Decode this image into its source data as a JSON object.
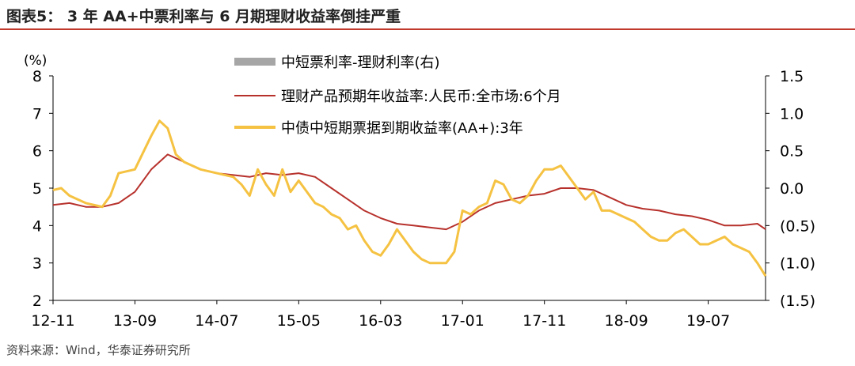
{
  "header": {
    "title": "图表5： 3 年 AA+中票利率与 6 月期理财收益率倒挂严重"
  },
  "footer": {
    "source": "资料来源：Wind，华泰证券研究所"
  },
  "colors": {
    "accent": "#c0392b",
    "spread": "#a6a6a6",
    "wmp": "#b7312c",
    "aa": "#f5c242"
  },
  "chart_data": {
    "type": "line",
    "title": "",
    "left_axis": {
      "unit_label": "(%)",
      "ylim": [
        2,
        8
      ],
      "ticks": [
        "2",
        "3",
        "4",
        "5",
        "6",
        "7",
        "8"
      ]
    },
    "right_axis": {
      "ylim": [
        -1.5,
        1.5
      ],
      "ticks": [
        "(1.5)",
        "(1.0)",
        "(0.5)",
        "0.0",
        "0.5",
        "1.0",
        "1.5"
      ]
    },
    "x_ticks": [
      "12-11",
      "13-09",
      "14-07",
      "15-05",
      "16-03",
      "17-01",
      "17-11",
      "18-09",
      "19-07"
    ],
    "legend_placement": "top-center",
    "series": [
      {
        "name": "中短票利率-理财利率(右)",
        "axis": "right",
        "style": "bar",
        "x": [],
        "values": []
      },
      {
        "name": "理财产品预期年收益率:人民币:全市场:6个月",
        "axis": "left",
        "style": "line",
        "x": [
          "2012-11",
          "2013-01",
          "2013-03",
          "2013-05",
          "2013-07",
          "2013-09",
          "2013-11",
          "2014-01",
          "2014-03",
          "2014-05",
          "2014-07",
          "2014-09",
          "2014-11",
          "2015-01",
          "2015-03",
          "2015-05",
          "2015-07",
          "2015-09",
          "2015-11",
          "2016-01",
          "2016-03",
          "2016-05",
          "2016-07",
          "2016-09",
          "2016-11",
          "2017-01",
          "2017-03",
          "2017-05",
          "2017-07",
          "2017-09",
          "2017-11",
          "2018-01",
          "2018-03",
          "2018-05",
          "2018-07",
          "2018-09",
          "2018-11",
          "2019-01",
          "2019-03",
          "2019-05",
          "2019-07",
          "2019-09",
          "2019-11",
          "2020-01",
          "2020-02"
        ],
        "values": [
          4.55,
          4.6,
          4.5,
          4.5,
          4.6,
          4.9,
          5.5,
          5.9,
          5.7,
          5.5,
          5.4,
          5.35,
          5.3,
          5.4,
          5.35,
          5.4,
          5.3,
          5.0,
          4.7,
          4.4,
          4.2,
          4.05,
          4.0,
          3.95,
          3.9,
          4.1,
          4.4,
          4.6,
          4.7,
          4.8,
          4.85,
          5.0,
          5.0,
          4.95,
          4.75,
          4.55,
          4.45,
          4.4,
          4.3,
          4.25,
          4.15,
          4.0,
          4.0,
          4.05,
          3.9
        ]
      },
      {
        "name": "中债中短期票据到期收益率(AA+):3年",
        "axis": "left",
        "style": "line",
        "x": [
          "2012-11",
          "2012-12",
          "2013-01",
          "2013-03",
          "2013-05",
          "2013-06",
          "2013-07",
          "2013-09",
          "2013-11",
          "2013-12",
          "2014-01",
          "2014-02",
          "2014-03",
          "2014-05",
          "2014-07",
          "2014-09",
          "2014-10",
          "2014-11",
          "2014-12",
          "2015-01",
          "2015-02",
          "2015-03",
          "2015-04",
          "2015-05",
          "2015-06",
          "2015-07",
          "2015-08",
          "2015-09",
          "2015-10",
          "2015-11",
          "2015-12",
          "2016-01",
          "2016-02",
          "2016-03",
          "2016-04",
          "2016-05",
          "2016-06",
          "2016-07",
          "2016-08",
          "2016-09",
          "2016-10",
          "2016-11",
          "2016-12",
          "2017-01",
          "2017-02",
          "2017-03",
          "2017-04",
          "2017-05",
          "2017-06",
          "2017-07",
          "2017-08",
          "2017-09",
          "2017-10",
          "2017-11",
          "2017-12",
          "2018-01",
          "2018-02",
          "2018-03",
          "2018-04",
          "2018-05",
          "2018-06",
          "2018-07",
          "2018-08",
          "2018-09",
          "2018-10",
          "2018-11",
          "2018-12",
          "2019-01",
          "2019-02",
          "2019-03",
          "2019-04",
          "2019-05",
          "2019-06",
          "2019-07",
          "2019-08",
          "2019-09",
          "2019-10",
          "2019-11",
          "2019-12",
          "2020-01",
          "2020-02"
        ],
        "values": [
          4.95,
          5.0,
          4.8,
          4.6,
          4.5,
          4.8,
          5.4,
          5.5,
          6.4,
          6.8,
          6.6,
          5.9,
          5.7,
          5.5,
          5.4,
          5.3,
          5.1,
          4.8,
          5.5,
          5.1,
          4.8,
          5.5,
          4.9,
          5.2,
          4.9,
          4.6,
          4.5,
          4.3,
          4.2,
          3.9,
          4.0,
          3.6,
          3.3,
          3.2,
          3.5,
          3.9,
          3.6,
          3.3,
          3.1,
          3.0,
          3.0,
          3.0,
          3.3,
          4.4,
          4.3,
          4.5,
          4.6,
          5.2,
          5.1,
          4.7,
          4.6,
          4.8,
          5.2,
          5.5,
          5.5,
          5.6,
          5.3,
          5.0,
          4.7,
          4.9,
          4.4,
          4.4,
          4.3,
          4.2,
          4.1,
          3.9,
          3.7,
          3.6,
          3.6,
          3.8,
          3.9,
          3.7,
          3.5,
          3.5,
          3.6,
          3.7,
          3.5,
          3.4,
          3.3,
          3.0,
          2.65
        ]
      }
    ]
  }
}
